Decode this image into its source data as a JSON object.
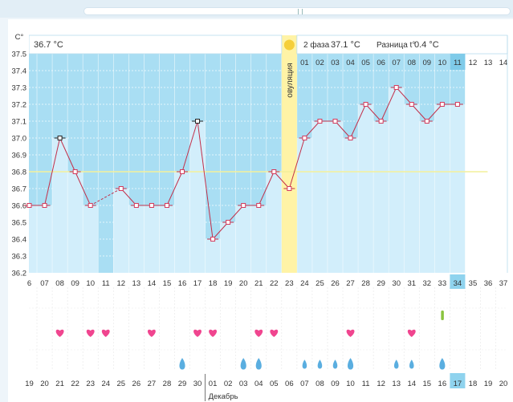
{
  "scrollbar": {
    "grip": "||"
  },
  "chart_data": {
    "type": "line",
    "ylabel": "C°",
    "ylim": [
      36.2,
      37.5
    ],
    "yticks": [
      "37.5",
      "37.4",
      "37.3",
      "37.2",
      "37.1",
      "37.0",
      "36.9",
      "36.8",
      "36.7",
      "36.6",
      "36.5",
      "36.4",
      "36.3",
      "36.2"
    ],
    "selected_temp": "36.7 °C",
    "ovulation_label": "овуляция",
    "phase2": {
      "label": "2 фаза",
      "value": "37.1 °C",
      "diff_label": "Разница t°",
      "diff_value": "0.4 °C"
    },
    "phase2_days": [
      "01",
      "02",
      "03",
      "04",
      "05",
      "06",
      "07",
      "08",
      "09",
      "10",
      "11",
      "12",
      "13",
      "14"
    ],
    "cycle_days": [
      "6",
      "07",
      "08",
      "09",
      "10",
      "11",
      "12",
      "13",
      "14",
      "15",
      "16",
      "17",
      "18",
      "19",
      "20",
      "21",
      "22",
      "23",
      "24",
      "25",
      "26",
      "27",
      "28",
      "29",
      "30",
      "31",
      "32",
      "33",
      "34",
      "35",
      "36",
      "37"
    ],
    "dates": [
      "19",
      "20",
      "21",
      "22",
      "23",
      "24",
      "25",
      "26",
      "27",
      "28",
      "29",
      "30",
      "01",
      "02",
      "03",
      "04",
      "05",
      "06",
      "07",
      "08",
      "09",
      "10",
      "11",
      "12",
      "13",
      "14",
      "15",
      "16",
      "17",
      "18",
      "19",
      "20"
    ],
    "dates_red": [
      "23",
      "24",
      "30",
      "01",
      "07",
      "08",
      "14",
      "15"
    ],
    "month_label": "Декабрь",
    "temps": [
      36.6,
      36.6,
      37.0,
      36.8,
      36.6,
      null,
      36.7,
      36.6,
      36.6,
      36.6,
      36.8,
      37.1,
      36.4,
      36.5,
      36.6,
      36.6,
      36.8,
      36.7,
      37.0,
      37.1,
      37.1,
      37.0,
      37.2,
      37.1,
      37.3,
      37.2,
      37.1,
      37.2,
      37.2,
      null,
      null,
      null
    ],
    "coverline": 36.8,
    "hearts": [
      "21",
      "23",
      "24",
      "27",
      "30",
      "01",
      "04",
      "05",
      "10",
      "14"
    ],
    "drops": [
      "29",
      "03",
      "04",
      "07",
      "08",
      "09",
      "10",
      "13",
      "14",
      "16"
    ],
    "big_drops": [
      "29",
      "03",
      "04",
      "10",
      "16"
    ],
    "test_marker": "16",
    "current_day": "34",
    "current_date": "17"
  }
}
